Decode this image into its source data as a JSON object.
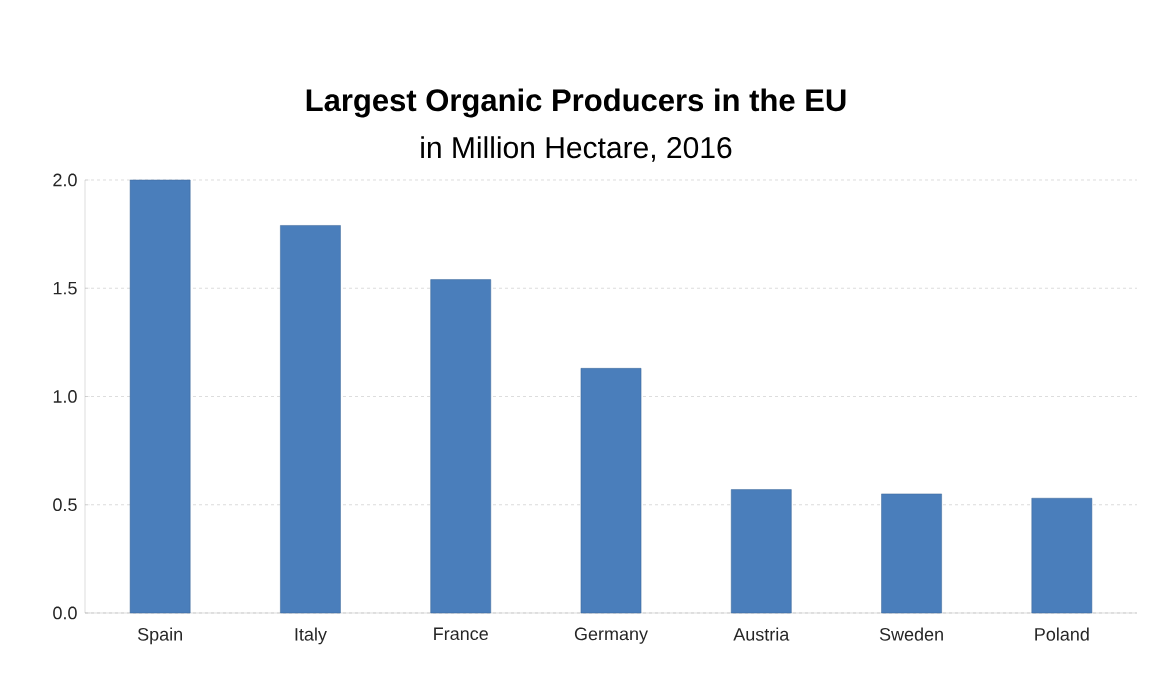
{
  "chart_data": {
    "type": "bar",
    "title": "Largest Organic Producers in the EU",
    "subtitle": "in Million Hectare, 2016",
    "categories": [
      "Spain",
      "Italy",
      "France",
      "Germany",
      "Austria",
      "Sweden",
      "Poland"
    ],
    "values": [
      2.0,
      1.79,
      1.54,
      1.13,
      0.57,
      0.55,
      0.53
    ],
    "color": "#4a7ebb",
    "ylim": [
      0,
      2.0
    ],
    "yticks": [
      {
        "value": 0,
        "label": "0.0"
      },
      {
        "value": 0.5,
        "label": "0.5"
      },
      {
        "value": 1.0,
        "label": "1.0"
      },
      {
        "value": 1.5,
        "label": "1.5"
      },
      {
        "value": 2.0,
        "label": "2.0"
      }
    ],
    "grid": "y"
  }
}
